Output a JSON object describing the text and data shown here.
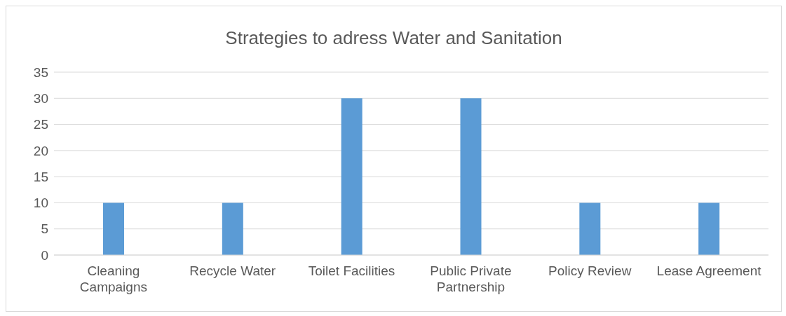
{
  "chart_data": {
    "type": "bar",
    "title": "Strategies to adress Water and Sanitation",
    "categories": [
      "Cleaning Campaigns",
      "Recycle Water",
      "Toilet Facilities",
      "Public Private Partnership",
      "Policy Review",
      "Lease Agreement"
    ],
    "values": [
      10,
      10,
      30,
      30,
      10,
      10
    ],
    "color": "#5b9bd5",
    "ylim": [
      0,
      35
    ],
    "yticks": [
      0,
      5,
      10,
      15,
      20,
      25,
      30,
      35
    ],
    "grid": "y"
  }
}
